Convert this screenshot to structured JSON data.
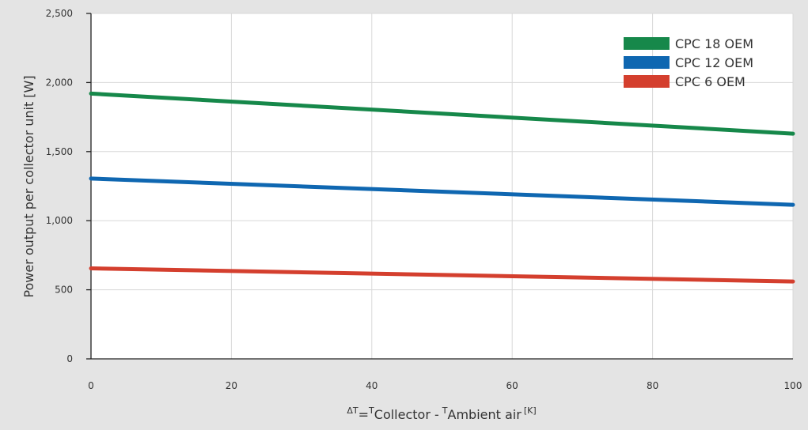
{
  "chart_data": {
    "type": "line",
    "xlabel_parts": {
      "delta": "ΔT",
      "equals": "=",
      "t1": "T",
      "collector": "Collector -",
      "t2": "T",
      "ambient": "Ambient air",
      "unit": "[K]"
    },
    "ylabel": "Power output per collector unit [W]",
    "xlim": [
      0,
      100
    ],
    "ylim": [
      0,
      2500
    ],
    "x_ticks": [
      0,
      20,
      40,
      60,
      80,
      100
    ],
    "y_ticks": [
      0,
      500,
      1000,
      1500,
      2000,
      2500
    ],
    "x_tick_labels": [
      "0",
      "20",
      "40",
      "60",
      "80",
      "100"
    ],
    "y_tick_labels": [
      "0",
      "500",
      "1,000",
      "1,500",
      "2,000",
      "2,500"
    ],
    "grid": true,
    "legend_position": "top-right",
    "series": [
      {
        "name": "CPC 18 OEM",
        "color": "#16884a",
        "x": [
          0,
          100
        ],
        "y": [
          1920,
          1630
        ]
      },
      {
        "name": "CPC 12 OEM",
        "color": "#0f67b1",
        "x": [
          0,
          100
        ],
        "y": [
          1305,
          1115
        ]
      },
      {
        "name": "CPC 6 OEM",
        "color": "#d43f2e",
        "x": [
          0,
          100
        ],
        "y": [
          655,
          560
        ]
      }
    ]
  }
}
